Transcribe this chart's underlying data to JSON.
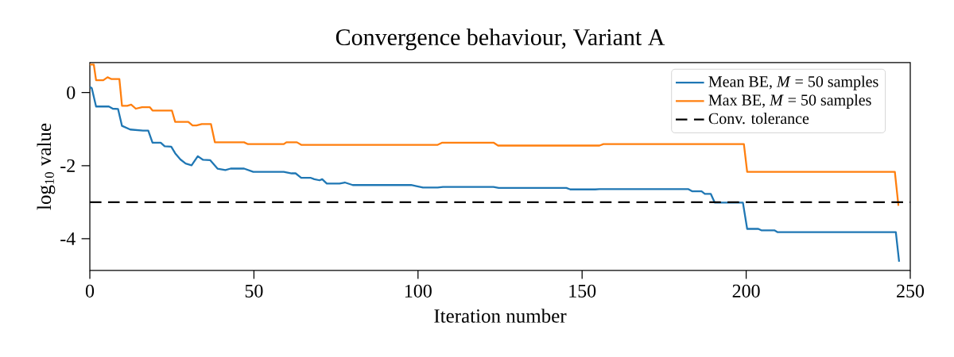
{
  "chart_data": {
    "type": "line",
    "title": "Convergence behaviour, Variant A",
    "xlabel": "Iteration number",
    "ylabel": "log$_{10}$ value",
    "xlim": [
      0,
      250
    ],
    "ylim": [
      -4.87,
      0.82
    ],
    "xticks": [
      0,
      50,
      100,
      150,
      200,
      250
    ],
    "yticks": [
      -4,
      -2,
      0
    ],
    "legend": "top right",
    "grid": false,
    "marker": "none",
    "line_style": "solid",
    "series": [
      {
        "name": "Mean BE, *M* = 50 samples",
        "color": "#1f77b4",
        "x": [
          0,
          0.6,
          1.9,
          5.8,
          7,
          8.6,
          9.8,
          12.3,
          16.2,
          17.8,
          19.1,
          21.6,
          22.8,
          24.8,
          26,
          27.6,
          29.2,
          31,
          32.9,
          34.5,
          36.7,
          38.9,
          41.3,
          42.9,
          47,
          49.8,
          59.1,
          61.5,
          62.7,
          64.4,
          67.2,
          68.4,
          70,
          70.8,
          72.2,
          76.1,
          77.7,
          80.1,
          97.9,
          99.5,
          101.5,
          106,
          107.6,
          123,
          124.6,
          145.2,
          146.4,
          154,
          155.3,
          182.3,
          183.5,
          186.4,
          187.4,
          189.2,
          190.4,
          199,
          200.3,
          203.7,
          204.6,
          208.6,
          209.6,
          245.6,
          246.6
        ],
        "values": [
          0.16,
          0.12,
          -0.38,
          -0.38,
          -0.44,
          -0.45,
          -0.91,
          -1.01,
          -1.04,
          -1.04,
          -1.37,
          -1.37,
          -1.47,
          -1.48,
          -1.66,
          -1.83,
          -1.94,
          -1.99,
          -1.74,
          -1.84,
          -1.85,
          -2.08,
          -2.12,
          -2.08,
          -2.08,
          -2.17,
          -2.17,
          -2.21,
          -2.21,
          -2.33,
          -2.33,
          -2.37,
          -2.4,
          -2.37,
          -2.49,
          -2.49,
          -2.46,
          -2.53,
          -2.53,
          -2.56,
          -2.6,
          -2.6,
          -2.58,
          -2.58,
          -2.61,
          -2.61,
          -2.65,
          -2.65,
          -2.64,
          -2.64,
          -2.7,
          -2.7,
          -2.77,
          -2.77,
          -3.01,
          -3.01,
          -3.73,
          -3.73,
          -3.77,
          -3.77,
          -3.82,
          -3.82,
          -4.63
        ]
      },
      {
        "name": "Max BE, *M* = 50 samples",
        "color": "#ff7f0e",
        "x": [
          0,
          1.2,
          1.9,
          4.1,
          5.4,
          6.6,
          9,
          9.8,
          11.4,
          12.6,
          14,
          15.9,
          18.3,
          19.1,
          25,
          26,
          30,
          31.3,
          32.5,
          34.1,
          36.9,
          38.1,
          47,
          48.2,
          59.1,
          59.9,
          63.1,
          64.4,
          106,
          107.4,
          123,
          124.4,
          155.3,
          156.5,
          199.3,
          200.3,
          245.3,
          246.4
        ],
        "values": [
          0.77,
          0.77,
          0.34,
          0.34,
          0.42,
          0.37,
          0.37,
          -0.36,
          -0.36,
          -0.33,
          -0.44,
          -0.4,
          -0.4,
          -0.49,
          -0.49,
          -0.8,
          -0.8,
          -0.9,
          -0.9,
          -0.86,
          -0.86,
          -1.36,
          -1.36,
          -1.41,
          -1.41,
          -1.36,
          -1.36,
          -1.43,
          -1.43,
          -1.37,
          -1.37,
          -1.45,
          -1.45,
          -1.41,
          -1.41,
          -2.17,
          -2.17,
          -3.1
        ]
      }
    ],
    "ref_lines": [
      {
        "axis": "y",
        "value": -3,
        "label": "Conv. tolerance",
        "color": "#000000",
        "line_style": "dashed"
      }
    ]
  }
}
